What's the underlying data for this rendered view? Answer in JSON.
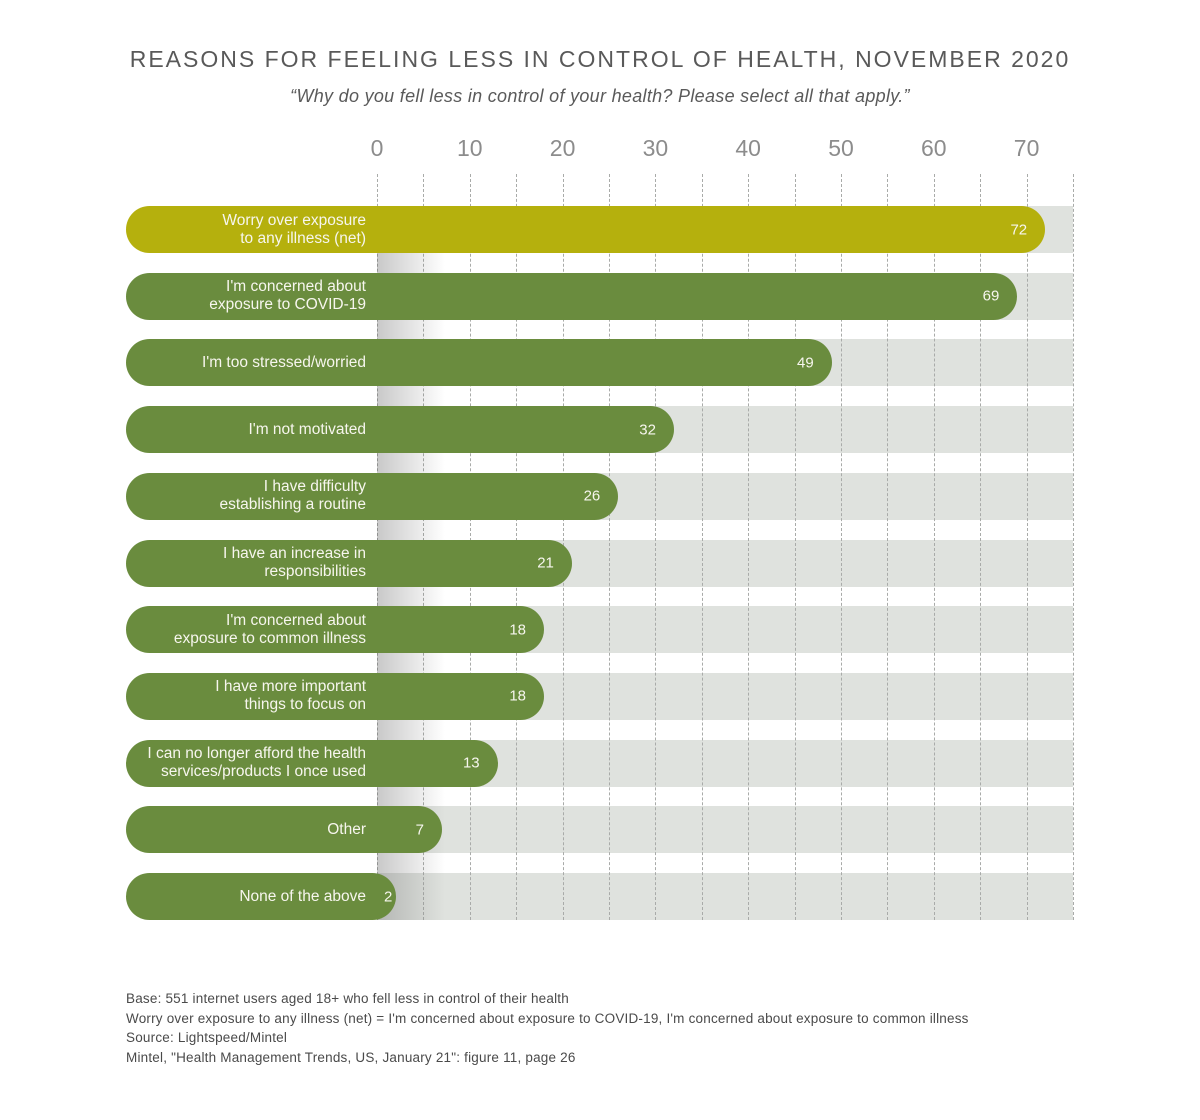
{
  "chart_data": {
    "type": "bar",
    "orientation": "horizontal",
    "title": "REASONS FOR FEELING LESS IN CONTROL OF HEALTH, NOVEMBER 2020",
    "subtitle": "“Why do you fell less in control of your health? Please select all that apply.”",
    "categories": [
      "Worry over exposure\nto any illness (net)",
      "I'm concerned about\nexposure to COVID-19",
      "I'm too stressed/worried",
      "I'm not motivated",
      "I have difficulty\nestablishing a routine",
      "I have an increase in\nresponsibilities",
      "I'm concerned about\nexposure to common illness",
      "I have more important\nthings to focus on",
      "I can no longer afford the health\nservices/products I once used",
      "Other",
      "None of the above"
    ],
    "values": [
      72,
      69,
      49,
      32,
      26,
      21,
      18,
      18,
      13,
      7,
      2
    ],
    "xlim": [
      0,
      75
    ],
    "x_ticks": [
      0,
      10,
      20,
      30,
      40,
      50,
      60,
      70
    ],
    "grid_step": 5,
    "grid": "dashed-vertical",
    "legend": "none",
    "highlight_index": 0,
    "colors": {
      "highlight_bar": "#b5b00d",
      "bar": "#6a8c3e",
      "track": "#dfe2de",
      "value_text": "#f7f6ee"
    },
    "footnotes": [
      "Base: 551 internet users aged 18+ who fell less in control of their health",
      "Worry over exposure to any illness (net) = I'm concerned about exposure to COVID-19, I'm concerned about exposure to common illness",
      "Source: Lightspeed/Mintel",
      "Mintel, \"Health Management Trends, US, January 21\": figure 11, page 26"
    ]
  }
}
